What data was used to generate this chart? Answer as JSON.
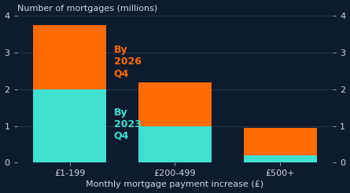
{
  "categories": [
    "£1-199",
    "£200-499",
    "£500+"
  ],
  "by_2023_q4": [
    2.0,
    1.0,
    0.2
  ],
  "by_2026_q4": [
    1.75,
    1.2,
    0.75
  ],
  "color_2023": "#40E0D0",
  "color_2026": "#FF6B00",
  "bg_color": "#0d1b2e",
  "grid_color": "#2a3a52",
  "axis_line_color": "#3a4a62",
  "text_color": "#d0d8e8",
  "label_2023": "By\n2023\nQ4",
  "label_2026": "By\n2026\nQ4",
  "title": "Number of mortgages (millions)",
  "xlabel": "Monthly mortgage payment increase (£)",
  "ylim": [
    0,
    4
  ],
  "yticks": [
    0,
    1,
    2,
    3,
    4
  ],
  "bar_width": 0.7,
  "title_fontsize": 8,
  "tick_fontsize": 8,
  "xlabel_fontsize": 8,
  "annot_fontsize": 9
}
